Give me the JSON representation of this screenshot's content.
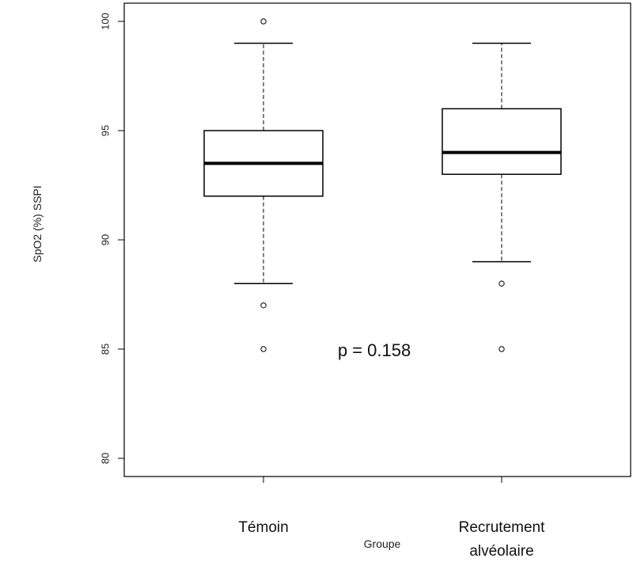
{
  "chart_data": {
    "type": "box",
    "title": "",
    "xlabel": "Groupe",
    "ylabel": "SpO2 (%) SSPI",
    "ylim": [
      80,
      100
    ],
    "yticks": [
      80,
      85,
      90,
      95,
      100
    ],
    "grid": false,
    "annotation": "p = 0.158",
    "categories": [
      {
        "label_lines": [
          "Témoin"
        ]
      },
      {
        "label_lines": [
          "Recrutement",
          "alvéolaire"
        ]
      }
    ],
    "boxes": [
      {
        "whisker_low": 88,
        "q1": 92,
        "median": 93.5,
        "q3": 95,
        "whisker_high": 99,
        "outliers": [
          100,
          87,
          85
        ]
      },
      {
        "whisker_low": 89,
        "q1": 93,
        "median": 94,
        "q3": 96,
        "whisker_high": 99,
        "outliers": [
          88,
          85
        ]
      }
    ]
  }
}
